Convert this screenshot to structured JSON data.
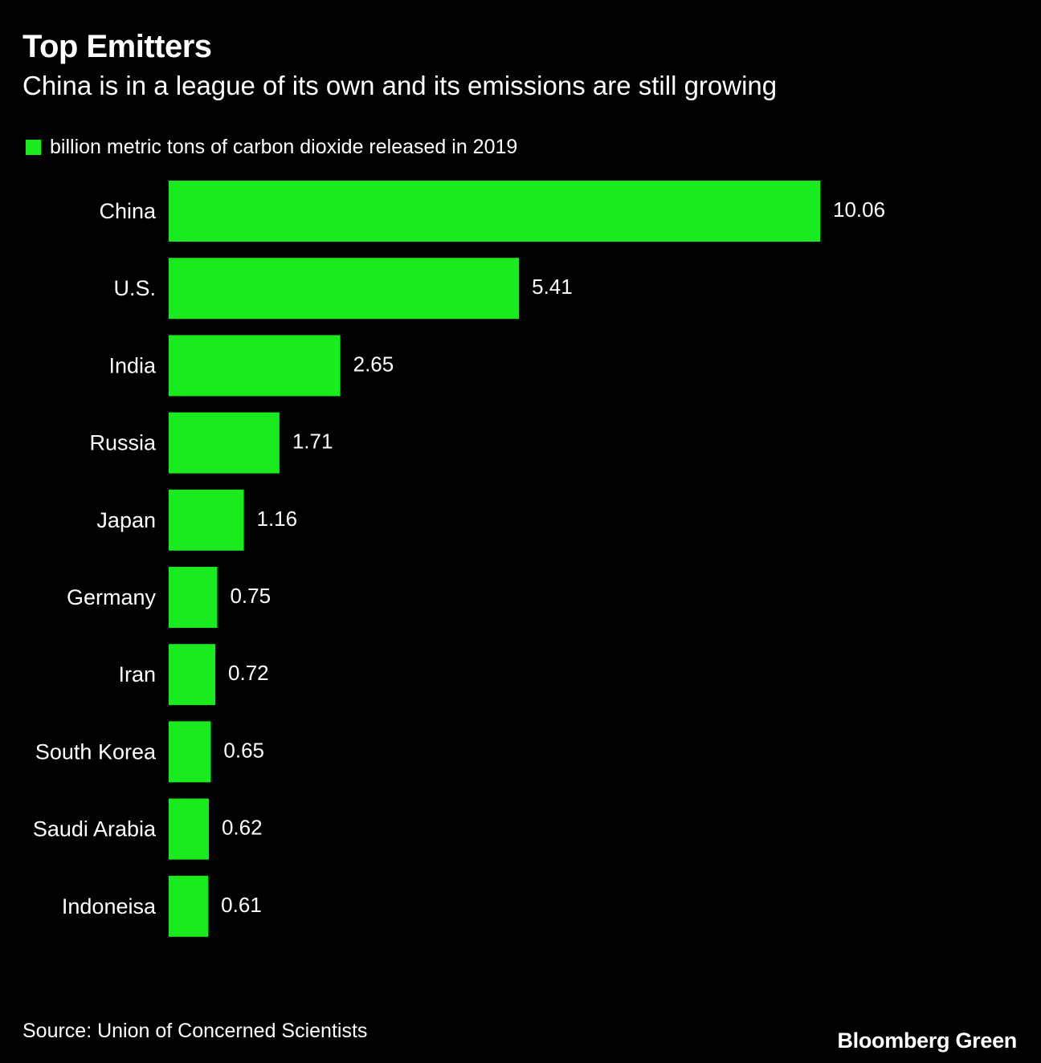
{
  "chart_data": {
    "type": "bar",
    "orientation": "horizontal",
    "title": "Top Emitters",
    "subtitle": "China is in a league of its own and its emissions are still growing",
    "legend": [
      "billion metric tons of carbon dioxide released in 2019"
    ],
    "categories": [
      "China",
      "U.S.",
      "India",
      "Russia",
      "Japan",
      "Germany",
      "Iran",
      "South Korea",
      "Saudi Arabia",
      "Indoneisa"
    ],
    "values": [
      10.06,
      5.41,
      2.65,
      1.71,
      1.16,
      0.75,
      0.72,
      0.65,
      0.62,
      0.61
    ],
    "value_labels": [
      "10.06",
      "5.41",
      "2.65",
      "1.71",
      "1.16",
      "0.75",
      "0.72",
      "0.65",
      "0.62",
      "0.61"
    ],
    "xlim": [
      0,
      10.06
    ],
    "bar_color": "#1aeb1f",
    "grid": false
  },
  "footer": {
    "source": "Source: Union of Concerned Scientists",
    "brand": "Bloomberg Green"
  },
  "colors": {
    "background": "#000000",
    "text": "#ffffff",
    "bar": "#1aeb1f"
  }
}
